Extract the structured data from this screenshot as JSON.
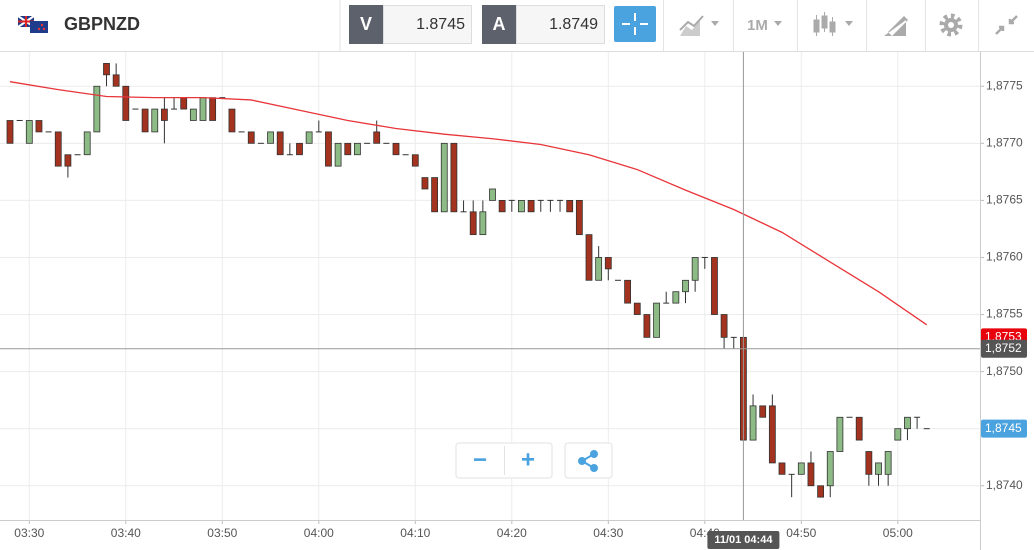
{
  "toolbar": {
    "symbol": "GBPNZD",
    "sell_label": "V",
    "sell_price": "1.8745",
    "buy_label": "A",
    "buy_price": "1.8749",
    "timeframe": "1M"
  },
  "zoom": {
    "zoom_out": "−",
    "zoom_in": "+"
  },
  "chart_data": {
    "type": "candlestick",
    "x": [
      "03:28",
      "03:29",
      "03:30",
      "03:31",
      "03:32",
      "03:33",
      "03:34",
      "03:35",
      "03:36",
      "03:37",
      "03:38",
      "03:39",
      "03:40",
      "03:41",
      "03:42",
      "03:43",
      "03:44",
      "03:45",
      "03:46",
      "03:47",
      "03:48",
      "03:49",
      "03:50",
      "03:51",
      "03:52",
      "03:53",
      "03:54",
      "03:55",
      "03:56",
      "03:57",
      "03:58",
      "03:59",
      "04:00",
      "04:01",
      "04:02",
      "04:03",
      "04:04",
      "04:05",
      "04:06",
      "04:07",
      "04:08",
      "04:09",
      "04:10",
      "04:11",
      "04:12",
      "04:13",
      "04:14",
      "04:15",
      "04:16",
      "04:17",
      "04:18",
      "04:19",
      "04:20",
      "04:21",
      "04:22",
      "04:23",
      "04:24",
      "04:25",
      "04:26",
      "04:27",
      "04:28",
      "04:29",
      "04:30",
      "04:31",
      "04:32",
      "04:33",
      "04:34",
      "04:35",
      "04:36",
      "04:37",
      "04:38",
      "04:39",
      "04:40",
      "04:41",
      "04:42",
      "04:43",
      "04:44",
      "04:45",
      "04:46",
      "04:47",
      "04:48",
      "04:49",
      "04:50",
      "04:51",
      "04:52",
      "04:53",
      "04:54",
      "04:55",
      "04:56",
      "04:57",
      "04:58",
      "04:59",
      "05:00",
      "05:01",
      "05:02",
      "05:03"
    ],
    "ohlc": [
      [
        1.8772,
        1.8772,
        1.877,
        1.877
      ],
      [
        1.8772,
        1.8772,
        1.8772,
        1.8772
      ],
      [
        1.877,
        1.8772,
        1.877,
        1.8772
      ],
      [
        1.8772,
        1.8772,
        1.8771,
        1.8771
      ],
      [
        1.8771,
        1.8771,
        1.8771,
        1.8771
      ],
      [
        1.8771,
        1.8771,
        1.8768,
        1.8768
      ],
      [
        1.8769,
        1.8769,
        1.8767,
        1.8768
      ],
      [
        1.8769,
        1.8769,
        1.8769,
        1.8769
      ],
      [
        1.8769,
        1.8771,
        1.8769,
        1.8771
      ],
      [
        1.8771,
        1.8775,
        1.8771,
        1.8775
      ],
      [
        1.8777,
        1.8777,
        1.8775,
        1.8776
      ],
      [
        1.8776,
        1.8777,
        1.8775,
        1.8775
      ],
      [
        1.8775,
        1.8775,
        1.8772,
        1.8772
      ],
      [
        1.8773,
        1.8773,
        1.8773,
        1.8773
      ],
      [
        1.8773,
        1.8773,
        1.8771,
        1.8771
      ],
      [
        1.8771,
        1.8773,
        1.8771,
        1.8773
      ],
      [
        1.8773,
        1.8774,
        1.877,
        1.8772
      ],
      [
        1.8773,
        1.8774,
        1.8773,
        1.8773
      ],
      [
        1.8774,
        1.8774,
        1.8773,
        1.8773
      ],
      [
        1.8772,
        1.8773,
        1.8772,
        1.8773
      ],
      [
        1.8772,
        1.8774,
        1.8772,
        1.8774
      ],
      [
        1.8774,
        1.8774,
        1.8772,
        1.8772
      ],
      [
        1.8774,
        1.8774,
        1.8774,
        1.8774
      ],
      [
        1.8773,
        1.8773,
        1.8771,
        1.8771
      ],
      [
        1.8771,
        1.8771,
        1.8771,
        1.8771
      ],
      [
        1.8771,
        1.8771,
        1.877,
        1.877
      ],
      [
        1.877,
        1.877,
        1.877,
        1.877
      ],
      [
        1.877,
        1.8771,
        1.877,
        1.8771
      ],
      [
        1.8771,
        1.8771,
        1.8769,
        1.8769
      ],
      [
        1.8769,
        1.877,
        1.8769,
        1.8769
      ],
      [
        1.877,
        1.877,
        1.8769,
        1.8769
      ],
      [
        1.877,
        1.8771,
        1.877,
        1.8771
      ],
      [
        1.8771,
        1.8772,
        1.8771,
        1.8771
      ],
      [
        1.8771,
        1.8771,
        1.8768,
        1.8768
      ],
      [
        1.8768,
        1.877,
        1.8768,
        1.877
      ],
      [
        1.877,
        1.877,
        1.8769,
        1.8769
      ],
      [
        1.8769,
        1.877,
        1.8769,
        1.877
      ],
      [
        1.877,
        1.877,
        1.877,
        1.877
      ],
      [
        1.8771,
        1.8772,
        1.877,
        1.877
      ],
      [
        1.877,
        1.877,
        1.877,
        1.877
      ],
      [
        1.877,
        1.877,
        1.8769,
        1.8769
      ],
      [
        1.8769,
        1.8769,
        1.8769,
        1.8769
      ],
      [
        1.8769,
        1.8769,
        1.8768,
        1.8768
      ],
      [
        1.8767,
        1.8767,
        1.8766,
        1.8766
      ],
      [
        1.8767,
        1.8767,
        1.8764,
        1.8764
      ],
      [
        1.8764,
        1.877,
        1.8764,
        1.877
      ],
      [
        1.877,
        1.877,
        1.8764,
        1.8764
      ],
      [
        1.8764,
        1.8765,
        1.8764,
        1.8764
      ],
      [
        1.8764,
        1.8765,
        1.8762,
        1.8762
      ],
      [
        1.8762,
        1.8765,
        1.8762,
        1.8764
      ],
      [
        1.8765,
        1.8766,
        1.8765,
        1.8766
      ],
      [
        1.8765,
        1.8765,
        1.8764,
        1.8764
      ],
      [
        1.8765,
        1.8765,
        1.8764,
        1.8765
      ],
      [
        1.8764,
        1.8765,
        1.8764,
        1.8765
      ],
      [
        1.8765,
        1.8765,
        1.8764,
        1.8764
      ],
      [
        1.8765,
        1.8765,
        1.8764,
        1.8765
      ],
      [
        1.8765,
        1.8765,
        1.8764,
        1.8765
      ],
      [
        1.8765,
        1.8765,
        1.8764,
        1.8765
      ],
      [
        1.8765,
        1.8765,
        1.8764,
        1.8764
      ],
      [
        1.8765,
        1.8765,
        1.8762,
        1.8762
      ],
      [
        1.8762,
        1.8762,
        1.8758,
        1.8758
      ],
      [
        1.8758,
        1.8761,
        1.8758,
        1.876
      ],
      [
        1.876,
        1.876,
        1.8758,
        1.8759
      ],
      [
        1.8758,
        1.8758,
        1.8758,
        1.8758
      ],
      [
        1.8758,
        1.8758,
        1.8756,
        1.8756
      ],
      [
        1.8756,
        1.8756,
        1.8755,
        1.8755
      ],
      [
        1.8755,
        1.8755,
        1.8753,
        1.8753
      ],
      [
        1.8753,
        1.8756,
        1.8753,
        1.8756
      ],
      [
        1.8756,
        1.8757,
        1.8756,
        1.8756
      ],
      [
        1.8756,
        1.8757,
        1.8756,
        1.8757
      ],
      [
        1.8757,
        1.8758,
        1.8756,
        1.8758
      ],
      [
        1.8758,
        1.876,
        1.8757,
        1.876
      ],
      [
        1.876,
        1.876,
        1.8759,
        1.876
      ],
      [
        1.876,
        1.876,
        1.8755,
        1.8755
      ],
      [
        1.8755,
        1.8755,
        1.8752,
        1.8753
      ],
      [
        1.8753,
        1.8753,
        1.8752,
        1.8753
      ],
      [
        1.8753,
        1.8753,
        1.8744,
        1.8744
      ],
      [
        1.8744,
        1.8748,
        1.8744,
        1.8747
      ],
      [
        1.8747,
        1.8747,
        1.8746,
        1.8746
      ],
      [
        1.8747,
        1.8748,
        1.8742,
        1.8742
      ],
      [
        1.8742,
        1.8742,
        1.8741,
        1.8741
      ],
      [
        1.8741,
        1.8741,
        1.8739,
        1.8741
      ],
      [
        1.8741,
        1.8742,
        1.8741,
        1.8742
      ],
      [
        1.8742,
        1.8743,
        1.874,
        1.874
      ],
      [
        1.874,
        1.874,
        1.8739,
        1.8739
      ],
      [
        1.874,
        1.8743,
        1.8739,
        1.8743
      ],
      [
        1.8743,
        1.8746,
        1.8743,
        1.8746
      ],
      [
        1.8746,
        1.8746,
        1.8746,
        1.8746
      ],
      [
        1.8746,
        1.8746,
        1.8744,
        1.8744
      ],
      [
        1.8743,
        1.8743,
        1.874,
        1.8741
      ],
      [
        1.8741,
        1.8742,
        1.874,
        1.8742
      ],
      [
        1.8741,
        1.8743,
        1.874,
        1.8743
      ],
      [
        1.8744,
        1.8745,
        1.8744,
        1.8745
      ],
      [
        1.8745,
        1.8746,
        1.8744,
        1.8746
      ],
      [
        1.8746,
        1.8746,
        1.8745,
        1.8746
      ],
      [
        1.8745,
        1.8745,
        1.8745,
        1.8745
      ]
    ],
    "up_color": "#8dbb86",
    "down_color": "#a3321f",
    "ma": {
      "color": "#e8353a",
      "x": [
        "03:28",
        "03:33",
        "03:38",
        "03:43",
        "03:48",
        "03:53",
        "03:58",
        "04:03",
        "04:08",
        "04:13",
        "04:18",
        "04:23",
        "04:28",
        "04:33",
        "04:38",
        "04:43",
        "04:48",
        "04:53",
        "04:58",
        "05:03"
      ],
      "values": [
        1.87754,
        1.87747,
        1.87741,
        1.8774,
        1.8774,
        1.87738,
        1.87729,
        1.8772,
        1.87713,
        1.87708,
        1.87704,
        1.87699,
        1.8769,
        1.87677,
        1.87659,
        1.87642,
        1.87622,
        1.87596,
        1.8757,
        1.87541
      ]
    },
    "ylim": [
      1.8737,
      1.8778
    ],
    "yticks": [
      {
        "value": 1.874,
        "label": "1,8740"
      },
      {
        "value": 1.8745,
        "label": "1,8745"
      },
      {
        "value": 1.875,
        "label": "1,8750"
      },
      {
        "value": 1.8755,
        "label": "1,8755"
      },
      {
        "value": 1.876,
        "label": "1,8760"
      },
      {
        "value": 1.8765,
        "label": "1,8765"
      },
      {
        "value": 1.877,
        "label": "1,8770"
      },
      {
        "value": 1.8775,
        "label": "1,8775"
      }
    ],
    "xticks": [
      "03:30",
      "03:40",
      "03:50",
      "04:00",
      "04:10",
      "04:20",
      "04:30",
      "04:40",
      "04:50",
      "05:00"
    ],
    "grid": true,
    "crosshair": {
      "x": "04:44",
      "x_label": "11/01 04:44",
      "y": 1.8752,
      "y_label": "1,8752"
    },
    "markers": [
      {
        "value": 1.8753,
        "label": "1,8753",
        "color": "#e8000b"
      },
      {
        "value": 1.8745,
        "label": "1,8745",
        "color": "#4aa3df"
      }
    ]
  }
}
